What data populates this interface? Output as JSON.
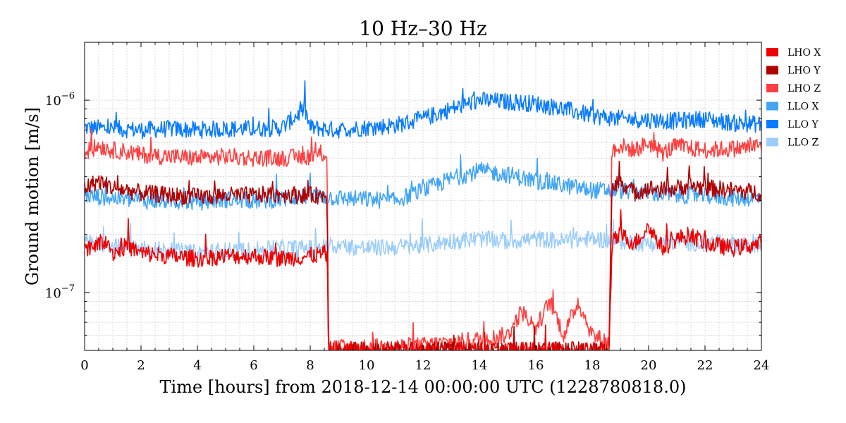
{
  "chart_data": {
    "type": "line",
    "title": "10 Hz–30 Hz",
    "xlabel": "Time [hours] from 2018-12-14 00:00:00 UTC (1228780818.0)",
    "ylabel": "Ground motion [m/s]",
    "xlim": [
      0,
      24
    ],
    "ylim": [
      5e-08,
      2e-06
    ],
    "yscale": "log",
    "grid": true,
    "legend_position": "outside-right-top",
    "x_ticks": [
      0,
      2,
      4,
      6,
      8,
      10,
      12,
      14,
      16,
      18,
      20,
      22,
      24
    ],
    "x_tick_labels": [
      "0",
      "2",
      "4",
      "6",
      "8",
      "10",
      "12",
      "14",
      "16",
      "18",
      "20",
      "22",
      "24"
    ],
    "y_tick_labels": [
      {
        "value": 1e-07,
        "base": "10",
        "exp": "−7"
      },
      {
        "value": 1e-06,
        "base": "10",
        "exp": "−6"
      }
    ],
    "series": [
      {
        "name": "LHO X",
        "color": "#ee0000",
        "points": [
          [
            0,
            1.7e-07
          ],
          [
            0.5,
            1.8e-07
          ],
          [
            0.8,
            1.9e-07
          ],
          [
            1,
            1.6e-07
          ],
          [
            1.5,
            1.75e-07
          ],
          [
            2,
            1.6e-07
          ],
          [
            3,
            1.55e-07
          ],
          [
            4,
            1.5e-07
          ],
          [
            5,
            1.55e-07
          ],
          [
            6,
            1.55e-07
          ],
          [
            7,
            1.5e-07
          ],
          [
            8,
            1.55e-07
          ],
          [
            8.6,
            1.6e-07
          ],
          [
            8.65,
            5e-08
          ],
          [
            18.6,
            5e-08
          ],
          [
            18.7,
            1.8e-07
          ],
          [
            19,
            2e-07
          ],
          [
            19.5,
            1.8e-07
          ],
          [
            20,
            2.2e-07
          ],
          [
            20.5,
            1.7e-07
          ],
          [
            21,
            1.9e-07
          ],
          [
            21.5,
            2e-07
          ],
          [
            22,
            1.8e-07
          ],
          [
            23,
            1.7e-07
          ],
          [
            24,
            1.8e-07
          ]
        ]
      },
      {
        "name": "LHO Y",
        "color": "#b00000",
        "points": [
          [
            0,
            3.5e-07
          ],
          [
            0.5,
            3.8e-07
          ],
          [
            1,
            3.5e-07
          ],
          [
            1.5,
            3.4e-07
          ],
          [
            2,
            3.3e-07
          ],
          [
            3,
            3.2e-07
          ],
          [
            4,
            3.15e-07
          ],
          [
            5,
            3.2e-07
          ],
          [
            6,
            3.2e-07
          ],
          [
            7,
            3.25e-07
          ],
          [
            8,
            3.2e-07
          ],
          [
            8.6,
            3.2e-07
          ],
          [
            8.65,
            5e-08
          ],
          [
            18.6,
            5e-08
          ],
          [
            18.7,
            3.5e-07
          ],
          [
            19,
            3.8e-07
          ],
          [
            19.5,
            3.3e-07
          ],
          [
            20,
            3.5e-07
          ],
          [
            20.5,
            3.4e-07
          ],
          [
            21,
            3.5e-07
          ],
          [
            21.5,
            3.6e-07
          ],
          [
            22,
            3.5e-07
          ],
          [
            23,
            3.4e-07
          ],
          [
            24,
            3.3e-07
          ]
        ]
      },
      {
        "name": "LHO Z",
        "color": "#ff4040",
        "points": [
          [
            0,
            5.3e-07
          ],
          [
            0.5,
            5.8e-07
          ],
          [
            1,
            5.5e-07
          ],
          [
            1.5,
            5.4e-07
          ],
          [
            2,
            5.2e-07
          ],
          [
            3,
            5.1e-07
          ],
          [
            4,
            5e-07
          ],
          [
            5,
            5.1e-07
          ],
          [
            6,
            5e-07
          ],
          [
            7,
            5e-07
          ],
          [
            8,
            5.1e-07
          ],
          [
            8.6,
            5.3e-07
          ],
          [
            8.65,
            5.2e-08
          ],
          [
            10,
            5.2e-08
          ],
          [
            12,
            5.3e-08
          ],
          [
            13,
            5.5e-08
          ],
          [
            14,
            5.7e-08
          ],
          [
            15,
            6e-08
          ],
          [
            15.5,
            8e-08
          ],
          [
            16,
            6.5e-08
          ],
          [
            16.5,
            9e-08
          ],
          [
            17,
            6e-08
          ],
          [
            17.5,
            9e-08
          ],
          [
            18,
            6e-08
          ],
          [
            18.6,
            5.5e-08
          ],
          [
            18.7,
            5.5e-07
          ],
          [
            19,
            5.8e-07
          ],
          [
            19.5,
            5.5e-07
          ],
          [
            20,
            6e-07
          ],
          [
            20.5,
            5.3e-07
          ],
          [
            21,
            5.8e-07
          ],
          [
            21.5,
            5.6e-07
          ],
          [
            22,
            5.5e-07
          ],
          [
            23,
            5.6e-07
          ],
          [
            24,
            5.8e-07
          ]
        ]
      },
      {
        "name": "LLO X",
        "color": "#42a5f5",
        "points": [
          [
            0,
            3.2e-07
          ],
          [
            1,
            3.1e-07
          ],
          [
            2,
            3e-07
          ],
          [
            3,
            3e-07
          ],
          [
            4,
            2.95e-07
          ],
          [
            5,
            3.05e-07
          ],
          [
            6,
            3e-07
          ],
          [
            7,
            3.05e-07
          ],
          [
            8,
            3.2e-07
          ],
          [
            9,
            3.1e-07
          ],
          [
            10,
            3.05e-07
          ],
          [
            11,
            3e-07
          ],
          [
            12,
            3.4e-07
          ],
          [
            13,
            3.9e-07
          ],
          [
            14,
            4.3e-07
          ],
          [
            15,
            4.1e-07
          ],
          [
            16,
            3.8e-07
          ],
          [
            17,
            3.6e-07
          ],
          [
            18,
            3.4e-07
          ],
          [
            19,
            3.4e-07
          ],
          [
            20,
            3.3e-07
          ],
          [
            21,
            3.2e-07
          ],
          [
            22,
            3.2e-07
          ],
          [
            23,
            3.1e-07
          ],
          [
            24,
            3.1e-07
          ]
        ]
      },
      {
        "name": "LLO Y",
        "color": "#0a7bff",
        "points": [
          [
            0,
            7.2e-07
          ],
          [
            1,
            7.1e-07
          ],
          [
            2,
            7e-07
          ],
          [
            3,
            7.1e-07
          ],
          [
            4,
            7e-07
          ],
          [
            5,
            7.1e-07
          ],
          [
            6,
            7.1e-07
          ],
          [
            7,
            7.2e-07
          ],
          [
            7.8,
            9e-07
          ],
          [
            8,
            7.2e-07
          ],
          [
            9,
            7e-07
          ],
          [
            10,
            7.2e-07
          ],
          [
            11,
            7.4e-07
          ],
          [
            12,
            8e-07
          ],
          [
            13,
            9e-07
          ],
          [
            14,
            1e-06
          ],
          [
            15,
            9.8e-07
          ],
          [
            16,
            9.6e-07
          ],
          [
            17,
            9e-07
          ],
          [
            18,
            8.3e-07
          ],
          [
            19,
            8e-07
          ],
          [
            20,
            7.9e-07
          ],
          [
            21,
            7.8e-07
          ],
          [
            22,
            8e-07
          ],
          [
            23,
            7.6e-07
          ],
          [
            24,
            7.5e-07
          ]
        ]
      },
      {
        "name": "LLO Z",
        "color": "#9ccdfa",
        "points": [
          [
            0,
            1.8e-07
          ],
          [
            1,
            1.75e-07
          ],
          [
            2,
            1.7e-07
          ],
          [
            3,
            1.65e-07
          ],
          [
            4,
            1.6e-07
          ],
          [
            5,
            1.65e-07
          ],
          [
            6,
            1.65e-07
          ],
          [
            7,
            1.7e-07
          ],
          [
            8,
            1.7e-07
          ],
          [
            9,
            1.75e-07
          ],
          [
            10,
            1.7e-07
          ],
          [
            11,
            1.72e-07
          ],
          [
            12,
            1.75e-07
          ],
          [
            13,
            1.85e-07
          ],
          [
            14,
            1.9e-07
          ],
          [
            15,
            1.85e-07
          ],
          [
            16,
            1.9e-07
          ],
          [
            17,
            1.85e-07
          ],
          [
            18,
            1.9e-07
          ],
          [
            19,
            1.85e-07
          ],
          [
            20,
            1.8e-07
          ],
          [
            21,
            1.85e-07
          ],
          [
            22,
            1.8e-07
          ],
          [
            23,
            1.8e-07
          ],
          [
            24,
            1.75e-07
          ]
        ]
      }
    ]
  }
}
